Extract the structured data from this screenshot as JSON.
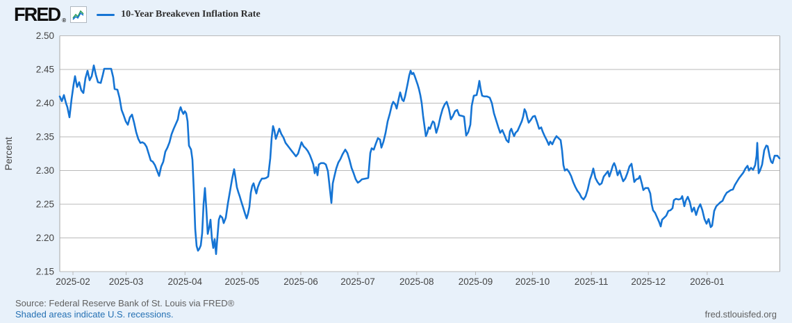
{
  "header": {
    "logo_text": "FRED",
    "logo_registered": "®",
    "legend": {
      "series_label": "10-Year Breakeven Inflation Rate"
    }
  },
  "footer": {
    "source_line": "Source: Federal Reserve Bank of St. Louis via FRED®",
    "recessions_note": "Shaded areas indicate U.S. recessions.",
    "site_url": "fred.stlouisfed.org"
  },
  "colors": {
    "background": "#e8f1fa",
    "plot_background": "#ffffff",
    "grid": "#b9b9b9",
    "plot_border": "#a6a6a6",
    "line": "#1574d4",
    "spark_green": "#2e9e5b",
    "axis_text": "#444444",
    "link": "#2470b3",
    "muted_text": "#5f5f5f"
  },
  "chart_data": {
    "type": "line",
    "series_name": "10-Year Breakeven Inflation Rate",
    "ylabel": "Percent",
    "xlabel": "",
    "ylim": [
      2.15,
      2.5
    ],
    "grid": true,
    "legend_position": "top-left",
    "y_ticks": [
      2.5,
      2.45,
      2.4,
      2.35,
      2.3,
      2.25,
      2.2,
      2.15
    ],
    "x_ticks": [
      "2025-02",
      "2025-03",
      "2025-04",
      "2025-05",
      "2025-06",
      "2025-07",
      "2025-08",
      "2025-09",
      "2025-10",
      "2025-11",
      "2025-12",
      "2026-01"
    ],
    "unit": "percent",
    "points": [
      [
        86,
        2.41
      ],
      [
        89,
        2.403
      ],
      [
        92,
        2.412
      ],
      [
        95,
        2.4
      ],
      [
        97,
        2.394
      ],
      [
        100,
        2.379
      ],
      [
        103,
        2.406
      ],
      [
        106,
        2.428
      ],
      [
        108,
        2.44
      ],
      [
        111,
        2.424
      ],
      [
        114,
        2.431
      ],
      [
        117,
        2.419
      ],
      [
        120,
        2.415
      ],
      [
        123,
        2.437
      ],
      [
        126,
        2.448
      ],
      [
        129,
        2.434
      ],
      [
        132,
        2.44
      ],
      [
        135,
        2.456
      ],
      [
        138,
        2.442
      ],
      [
        141,
        2.431
      ],
      [
        145,
        2.43
      ],
      [
        148,
        2.442
      ],
      [
        150,
        2.451
      ],
      [
        155,
        2.451
      ],
      [
        160,
        2.451
      ],
      [
        163,
        2.438
      ],
      [
        165,
        2.421
      ],
      [
        169,
        2.42
      ],
      [
        172,
        2.408
      ],
      [
        175,
        2.39
      ],
      [
        178,
        2.382
      ],
      [
        181,
        2.373
      ],
      [
        184,
        2.368
      ],
      [
        187,
        2.379
      ],
      [
        190,
        2.383
      ],
      [
        193,
        2.371
      ],
      [
        196,
        2.357
      ],
      [
        199,
        2.347
      ],
      [
        202,
        2.341
      ],
      [
        205,
        2.342
      ],
      [
        208,
        2.34
      ],
      [
        211,
        2.335
      ],
      [
        214,
        2.325
      ],
      [
        217,
        2.315
      ],
      [
        220,
        2.313
      ],
      [
        223,
        2.308
      ],
      [
        226,
        2.3
      ],
      [
        229,
        2.292
      ],
      [
        232,
        2.306
      ],
      [
        235,
        2.313
      ],
      [
        238,
        2.328
      ],
      [
        241,
        2.334
      ],
      [
        244,
        2.342
      ],
      [
        247,
        2.354
      ],
      [
        250,
        2.362
      ],
      [
        253,
        2.369
      ],
      [
        256,
        2.376
      ],
      [
        258,
        2.388
      ],
      [
        260,
        2.394
      ],
      [
        262,
        2.388
      ],
      [
        264,
        2.384
      ],
      [
        266,
        2.388
      ],
      [
        268,
        2.385
      ],
      [
        270,
        2.373
      ],
      [
        272,
        2.337
      ],
      [
        275,
        2.331
      ],
      [
        277,
        2.316
      ],
      [
        279,
        2.27
      ],
      [
        281,
        2.213
      ],
      [
        283,
        2.188
      ],
      [
        285,
        2.181
      ],
      [
        287,
        2.184
      ],
      [
        289,
        2.189
      ],
      [
        291,
        2.207
      ],
      [
        293,
        2.25
      ],
      [
        295,
        2.274
      ],
      [
        297,
        2.243
      ],
      [
        299,
        2.206
      ],
      [
        301,
        2.215
      ],
      [
        303,
        2.227
      ],
      [
        305,
        2.199
      ],
      [
        307,
        2.185
      ],
      [
        309,
        2.198
      ],
      [
        311,
        2.176
      ],
      [
        313,
        2.202
      ],
      [
        315,
        2.227
      ],
      [
        317,
        2.233
      ],
      [
        320,
        2.23
      ],
      [
        322,
        2.222
      ],
      [
        325,
        2.23
      ],
      [
        328,
        2.251
      ],
      [
        331,
        2.269
      ],
      [
        334,
        2.287
      ],
      [
        337,
        2.302
      ],
      [
        339,
        2.289
      ],
      [
        341,
        2.275
      ],
      [
        343,
        2.268
      ],
      [
        345,
        2.262
      ],
      [
        347,
        2.255
      ],
      [
        350,
        2.245
      ],
      [
        353,
        2.235
      ],
      [
        355,
        2.229
      ],
      [
        357,
        2.236
      ],
      [
        359,
        2.246
      ],
      [
        361,
        2.267
      ],
      [
        363,
        2.277
      ],
      [
        365,
        2.281
      ],
      [
        367,
        2.273
      ],
      [
        369,
        2.266
      ],
      [
        371,
        2.275
      ],
      [
        374,
        2.283
      ],
      [
        377,
        2.288
      ],
      [
        380,
        2.288
      ],
      [
        383,
        2.289
      ],
      [
        386,
        2.291
      ],
      [
        389,
        2.318
      ],
      [
        391,
        2.348
      ],
      [
        393,
        2.366
      ],
      [
        395,
        2.359
      ],
      [
        397,
        2.347
      ],
      [
        400,
        2.356
      ],
      [
        402,
        2.362
      ],
      [
        405,
        2.354
      ],
      [
        408,
        2.349
      ],
      [
        411,
        2.341
      ],
      [
        414,
        2.337
      ],
      [
        417,
        2.333
      ],
      [
        420,
        2.329
      ],
      [
        423,
        2.325
      ],
      [
        426,
        2.321
      ],
      [
        429,
        2.325
      ],
      [
        432,
        2.335
      ],
      [
        434,
        2.342
      ],
      [
        437,
        2.336
      ],
      [
        440,
        2.333
      ],
      [
        443,
        2.329
      ],
      [
        446,
        2.323
      ],
      [
        449,
        2.315
      ],
      [
        451,
        2.309
      ],
      [
        453,
        2.296
      ],
      [
        455,
        2.305
      ],
      [
        457,
        2.293
      ],
      [
        459,
        2.309
      ],
      [
        462,
        2.311
      ],
      [
        466,
        2.311
      ],
      [
        469,
        2.309
      ],
      [
        472,
        2.299
      ],
      [
        475,
        2.271
      ],
      [
        477,
        2.252
      ],
      [
        479,
        2.281
      ],
      [
        481,
        2.29
      ],
      [
        484,
        2.303
      ],
      [
        487,
        2.312
      ],
      [
        490,
        2.317
      ],
      [
        493,
        2.324
      ],
      [
        497,
        2.331
      ],
      [
        500,
        2.326
      ],
      [
        503,
        2.316
      ],
      [
        506,
        2.304
      ],
      [
        509,
        2.296
      ],
      [
        512,
        2.287
      ],
      [
        515,
        2.282
      ],
      [
        518,
        2.284
      ],
      [
        521,
        2.287
      ],
      [
        526,
        2.288
      ],
      [
        530,
        2.289
      ],
      [
        533,
        2.326
      ],
      [
        535,
        2.333
      ],
      [
        538,
        2.331
      ],
      [
        541,
        2.34
      ],
      [
        544,
        2.348
      ],
      [
        547,
        2.346
      ],
      [
        549,
        2.334
      ],
      [
        552,
        2.343
      ],
      [
        555,
        2.356
      ],
      [
        558,
        2.373
      ],
      [
        561,
        2.384
      ],
      [
        564,
        2.397
      ],
      [
        566,
        2.402
      ],
      [
        569,
        2.398
      ],
      [
        571,
        2.392
      ],
      [
        574,
        2.407
      ],
      [
        576,
        2.416
      ],
      [
        579,
        2.405
      ],
      [
        581,
        2.403
      ],
      [
        583,
        2.41
      ],
      [
        585,
        2.42
      ],
      [
        587,
        2.43
      ],
      [
        589,
        2.441
      ],
      [
        591,
        2.448
      ],
      [
        593,
        2.443
      ],
      [
        595,
        2.445
      ],
      [
        597,
        2.44
      ],
      [
        599,
        2.434
      ],
      [
        601,
        2.428
      ],
      [
        603,
        2.421
      ],
      [
        605,
        2.412
      ],
      [
        607,
        2.4
      ],
      [
        609,
        2.381
      ],
      [
        611,
        2.366
      ],
      [
        613,
        2.351
      ],
      [
        615,
        2.356
      ],
      [
        617,
        2.364
      ],
      [
        619,
        2.362
      ],
      [
        621,
        2.368
      ],
      [
        623,
        2.373
      ],
      [
        625,
        2.371
      ],
      [
        628,
        2.356
      ],
      [
        631,
        2.366
      ],
      [
        634,
        2.38
      ],
      [
        637,
        2.391
      ],
      [
        640,
        2.398
      ],
      [
        643,
        2.402
      ],
      [
        646,
        2.392
      ],
      [
        649,
        2.376
      ],
      [
        652,
        2.381
      ],
      [
        655,
        2.388
      ],
      [
        658,
        2.39
      ],
      [
        661,
        2.382
      ],
      [
        665,
        2.381
      ],
      [
        668,
        2.38
      ],
      [
        671,
        2.352
      ],
      [
        674,
        2.357
      ],
      [
        677,
        2.368
      ],
      [
        679,
        2.396
      ],
      [
        682,
        2.411
      ],
      [
        686,
        2.412
      ],
      [
        688,
        2.421
      ],
      [
        690,
        2.433
      ],
      [
        692,
        2.42
      ],
      [
        694,
        2.411
      ],
      [
        697,
        2.41
      ],
      [
        701,
        2.41
      ],
      [
        705,
        2.408
      ],
      [
        708,
        2.4
      ],
      [
        711,
        2.385
      ],
      [
        714,
        2.375
      ],
      [
        717,
        2.365
      ],
      [
        720,
        2.356
      ],
      [
        723,
        2.36
      ],
      [
        726,
        2.353
      ],
      [
        729,
        2.345
      ],
      [
        732,
        2.342
      ],
      [
        734,
        2.358
      ],
      [
        736,
        2.362
      ],
      [
        738,
        2.356
      ],
      [
        740,
        2.351
      ],
      [
        742,
        2.356
      ],
      [
        745,
        2.359
      ],
      [
        748,
        2.366
      ],
      [
        751,
        2.373
      ],
      [
        753,
        2.38
      ],
      [
        755,
        2.391
      ],
      [
        757,
        2.387
      ],
      [
        759,
        2.378
      ],
      [
        761,
        2.371
      ],
      [
        764,
        2.375
      ],
      [
        767,
        2.38
      ],
      [
        770,
        2.381
      ],
      [
        773,
        2.372
      ],
      [
        776,
        2.362
      ],
      [
        779,
        2.364
      ],
      [
        781,
        2.358
      ],
      [
        784,
        2.351
      ],
      [
        787,
        2.345
      ],
      [
        790,
        2.338
      ],
      [
        792,
        2.343
      ],
      [
        795,
        2.339
      ],
      [
        798,
        2.346
      ],
      [
        801,
        2.351
      ],
      [
        804,
        2.348
      ],
      [
        807,
        2.345
      ],
      [
        809,
        2.33
      ],
      [
        811,
        2.308
      ],
      [
        813,
        2.3
      ],
      [
        816,
        2.302
      ],
      [
        819,
        2.298
      ],
      [
        822,
        2.292
      ],
      [
        825,
        2.283
      ],
      [
        828,
        2.276
      ],
      [
        831,
        2.27
      ],
      [
        834,
        2.266
      ],
      [
        837,
        2.26
      ],
      [
        840,
        2.257
      ],
      [
        843,
        2.262
      ],
      [
        846,
        2.272
      ],
      [
        849,
        2.286
      ],
      [
        852,
        2.295
      ],
      [
        854,
        2.303
      ],
      [
        857,
        2.289
      ],
      [
        860,
        2.283
      ],
      [
        863,
        2.279
      ],
      [
        866,
        2.281
      ],
      [
        869,
        2.291
      ],
      [
        872,
        2.295
      ],
      [
        875,
        2.299
      ],
      [
        877,
        2.291
      ],
      [
        880,
        2.3
      ],
      [
        882,
        2.307
      ],
      [
        884,
        2.311
      ],
      [
        886,
        2.306
      ],
      [
        889,
        2.293
      ],
      [
        892,
        2.3
      ],
      [
        894,
        2.293
      ],
      [
        897,
        2.284
      ],
      [
        900,
        2.288
      ],
      [
        903,
        2.296
      ],
      [
        906,
        2.306
      ],
      [
        909,
        2.31
      ],
      [
        911,
        2.297
      ],
      [
        913,
        2.283
      ],
      [
        916,
        2.287
      ],
      [
        919,
        2.288
      ],
      [
        921,
        2.292
      ],
      [
        924,
        2.28
      ],
      [
        926,
        2.271
      ],
      [
        929,
        2.274
      ],
      [
        933,
        2.274
      ],
      [
        936,
        2.266
      ],
      [
        938,
        2.25
      ],
      [
        940,
        2.241
      ],
      [
        943,
        2.237
      ],
      [
        946,
        2.23
      ],
      [
        949,
        2.223
      ],
      [
        951,
        2.217
      ],
      [
        953,
        2.227
      ],
      [
        956,
        2.23
      ],
      [
        959,
        2.233
      ],
      [
        962,
        2.24
      ],
      [
        965,
        2.241
      ],
      [
        968,
        2.244
      ],
      [
        970,
        2.256
      ],
      [
        973,
        2.258
      ],
      [
        977,
        2.257
      ],
      [
        980,
        2.258
      ],
      [
        982,
        2.262
      ],
      [
        985,
        2.247
      ],
      [
        987,
        2.255
      ],
      [
        990,
        2.261
      ],
      [
        993,
        2.253
      ],
      [
        996,
        2.239
      ],
      [
        999,
        2.245
      ],
      [
        1002,
        2.234
      ],
      [
        1005,
        2.244
      ],
      [
        1008,
        2.25
      ],
      [
        1011,
        2.241
      ],
      [
        1014,
        2.228
      ],
      [
        1017,
        2.221
      ],
      [
        1020,
        2.228
      ],
      [
        1023,
        2.216
      ],
      [
        1025,
        2.218
      ],
      [
        1028,
        2.24
      ],
      [
        1031,
        2.247
      ],
      [
        1034,
        2.25
      ],
      [
        1037,
        2.253
      ],
      [
        1040,
        2.255
      ],
      [
        1043,
        2.262
      ],
      [
        1046,
        2.267
      ],
      [
        1049,
        2.269
      ],
      [
        1052,
        2.271
      ],
      [
        1055,
        2.272
      ],
      [
        1058,
        2.279
      ],
      [
        1061,
        2.284
      ],
      [
        1064,
        2.289
      ],
      [
        1067,
        2.293
      ],
      [
        1070,
        2.297
      ],
      [
        1073,
        2.303
      ],
      [
        1076,
        2.307
      ],
      [
        1078,
        2.3
      ],
      [
        1081,
        2.304
      ],
      [
        1084,
        2.301
      ],
      [
        1087,
        2.308
      ],
      [
        1089,
        2.322
      ],
      [
        1090,
        2.341
      ],
      [
        1092,
        2.296
      ],
      [
        1094,
        2.3
      ],
      [
        1097,
        2.309
      ],
      [
        1100,
        2.33
      ],
      [
        1103,
        2.337
      ],
      [
        1105,
        2.336
      ],
      [
        1108,
        2.32
      ],
      [
        1110,
        2.313
      ],
      [
        1112,
        2.311
      ],
      [
        1115,
        2.322
      ],
      [
        1119,
        2.322
      ],
      [
        1122,
        2.318
      ]
    ]
  }
}
